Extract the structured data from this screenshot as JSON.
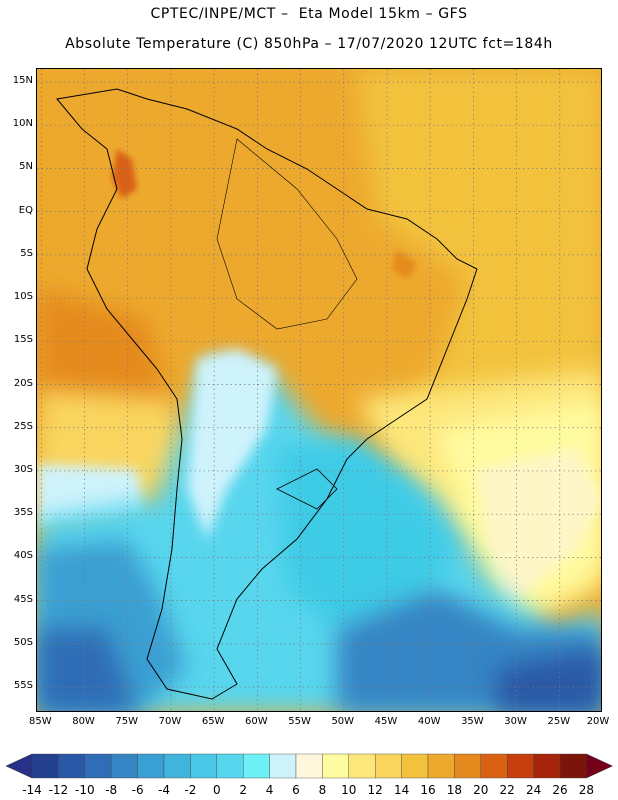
{
  "header": {
    "title_line1": "CPTEC/INPE/MCT –  Eta Model 15km – GFS",
    "title_line2": "Absolute Temperature (C) 850hPa – 17/07/2020 12UTC fct=184h"
  },
  "map": {
    "lat_labels": [
      "15N",
      "10N",
      "5N",
      "EQ",
      "5S",
      "10S",
      "15S",
      "20S",
      "25S",
      "30S",
      "35S",
      "40S",
      "45S",
      "50S",
      "55S"
    ],
    "lat_values": [
      15,
      10,
      5,
      0,
      -5,
      -10,
      -15,
      -20,
      -25,
      -30,
      -35,
      -40,
      -45,
      -50,
      -55
    ],
    "lon_labels": [
      "85W",
      "80W",
      "75W",
      "70W",
      "65W",
      "60W",
      "55W",
      "50W",
      "45W",
      "40W",
      "35W",
      "30W",
      "25W",
      "20W"
    ],
    "lon_values": [
      -85,
      -80,
      -75,
      -70,
      -65,
      -60,
      -55,
      -50,
      -45,
      -40,
      -35,
      -30,
      -25,
      -20
    ],
    "extent": {
      "lon_min": -85.5,
      "lon_max": -20,
      "lat_min": -58,
      "lat_max": 16.5
    },
    "field": "Absolute Temperature (C) 850hPa",
    "colors": {
      "ocean_warm": "#f2c23c",
      "tropics": "#eda92e",
      "andes_cold": "#5fd3ea",
      "south_atlantic": "#3ccbe6",
      "patagonia_deep": "#2f87c4",
      "warm_tongue": "#fff6c7"
    }
  },
  "colorbar": {
    "labels": [
      "-14",
      "-12",
      "-10",
      "-8",
      "-6",
      "-4",
      "-2",
      "0",
      "2",
      "4",
      "6",
      "8",
      "10",
      "12",
      "14",
      "16",
      "18",
      "20",
      "22",
      "24",
      "26",
      "28"
    ],
    "colors": [
      "#233f8f",
      "#2a58a6",
      "#2f6db6",
      "#3585c4",
      "#3a9fd2",
      "#41b4de",
      "#4ac6e6",
      "#58d6ee",
      "#6cf1f6",
      "#cff3fb",
      "#fff7dc",
      "#fffba0",
      "#fde77b",
      "#f9d55e",
      "#f2c23c",
      "#eda92e",
      "#e58a1f",
      "#da6114",
      "#c73e0f",
      "#a5240a",
      "#7c140a"
    ],
    "arrow_low_color": "#28318a",
    "arrow_high_color": "#76001a"
  }
}
